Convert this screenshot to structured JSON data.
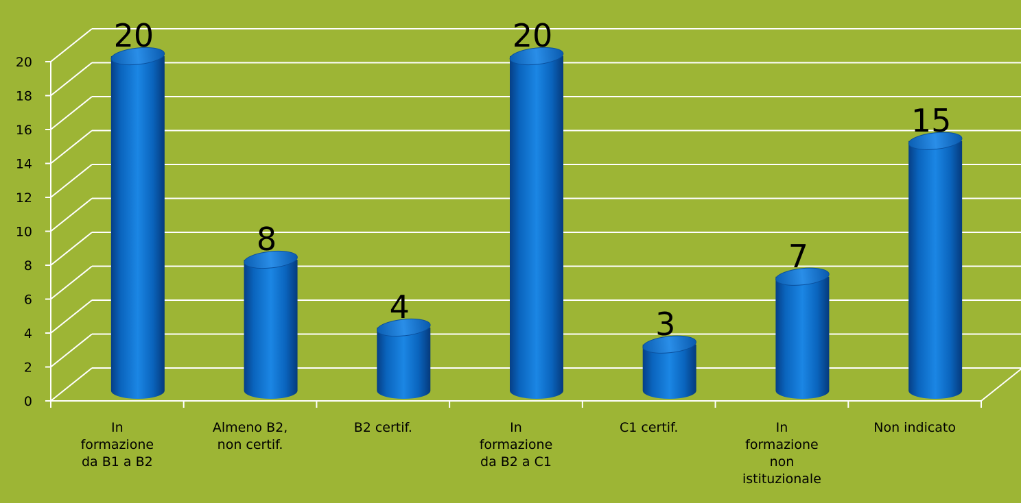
{
  "chart_data": {
    "type": "bar",
    "style": "3d-cylinder",
    "categories": [
      [
        "In",
        "formazione",
        "da B1 a B2"
      ],
      [
        "Almeno B2,",
        "non certif."
      ],
      [
        "B2 certif."
      ],
      [
        "In",
        "formazione",
        "da B2 a C1"
      ],
      [
        "C1 certif."
      ],
      [
        "In",
        "formazione",
        "non",
        "istituzionale"
      ],
      [
        "Non indicato"
      ]
    ],
    "values": [
      20,
      8,
      4,
      20,
      3,
      7,
      15
    ],
    "ylim": [
      0,
      20
    ],
    "yticks": [
      0,
      2,
      4,
      6,
      8,
      10,
      12,
      14,
      16,
      18,
      20
    ],
    "grid": true,
    "legend": "none",
    "colors": {
      "background": "#9db535",
      "bar": "#0a6bc4",
      "bar_dark": "#063f86",
      "bar_light": "#3d9cf0",
      "gridline": "#ffffff"
    }
  }
}
